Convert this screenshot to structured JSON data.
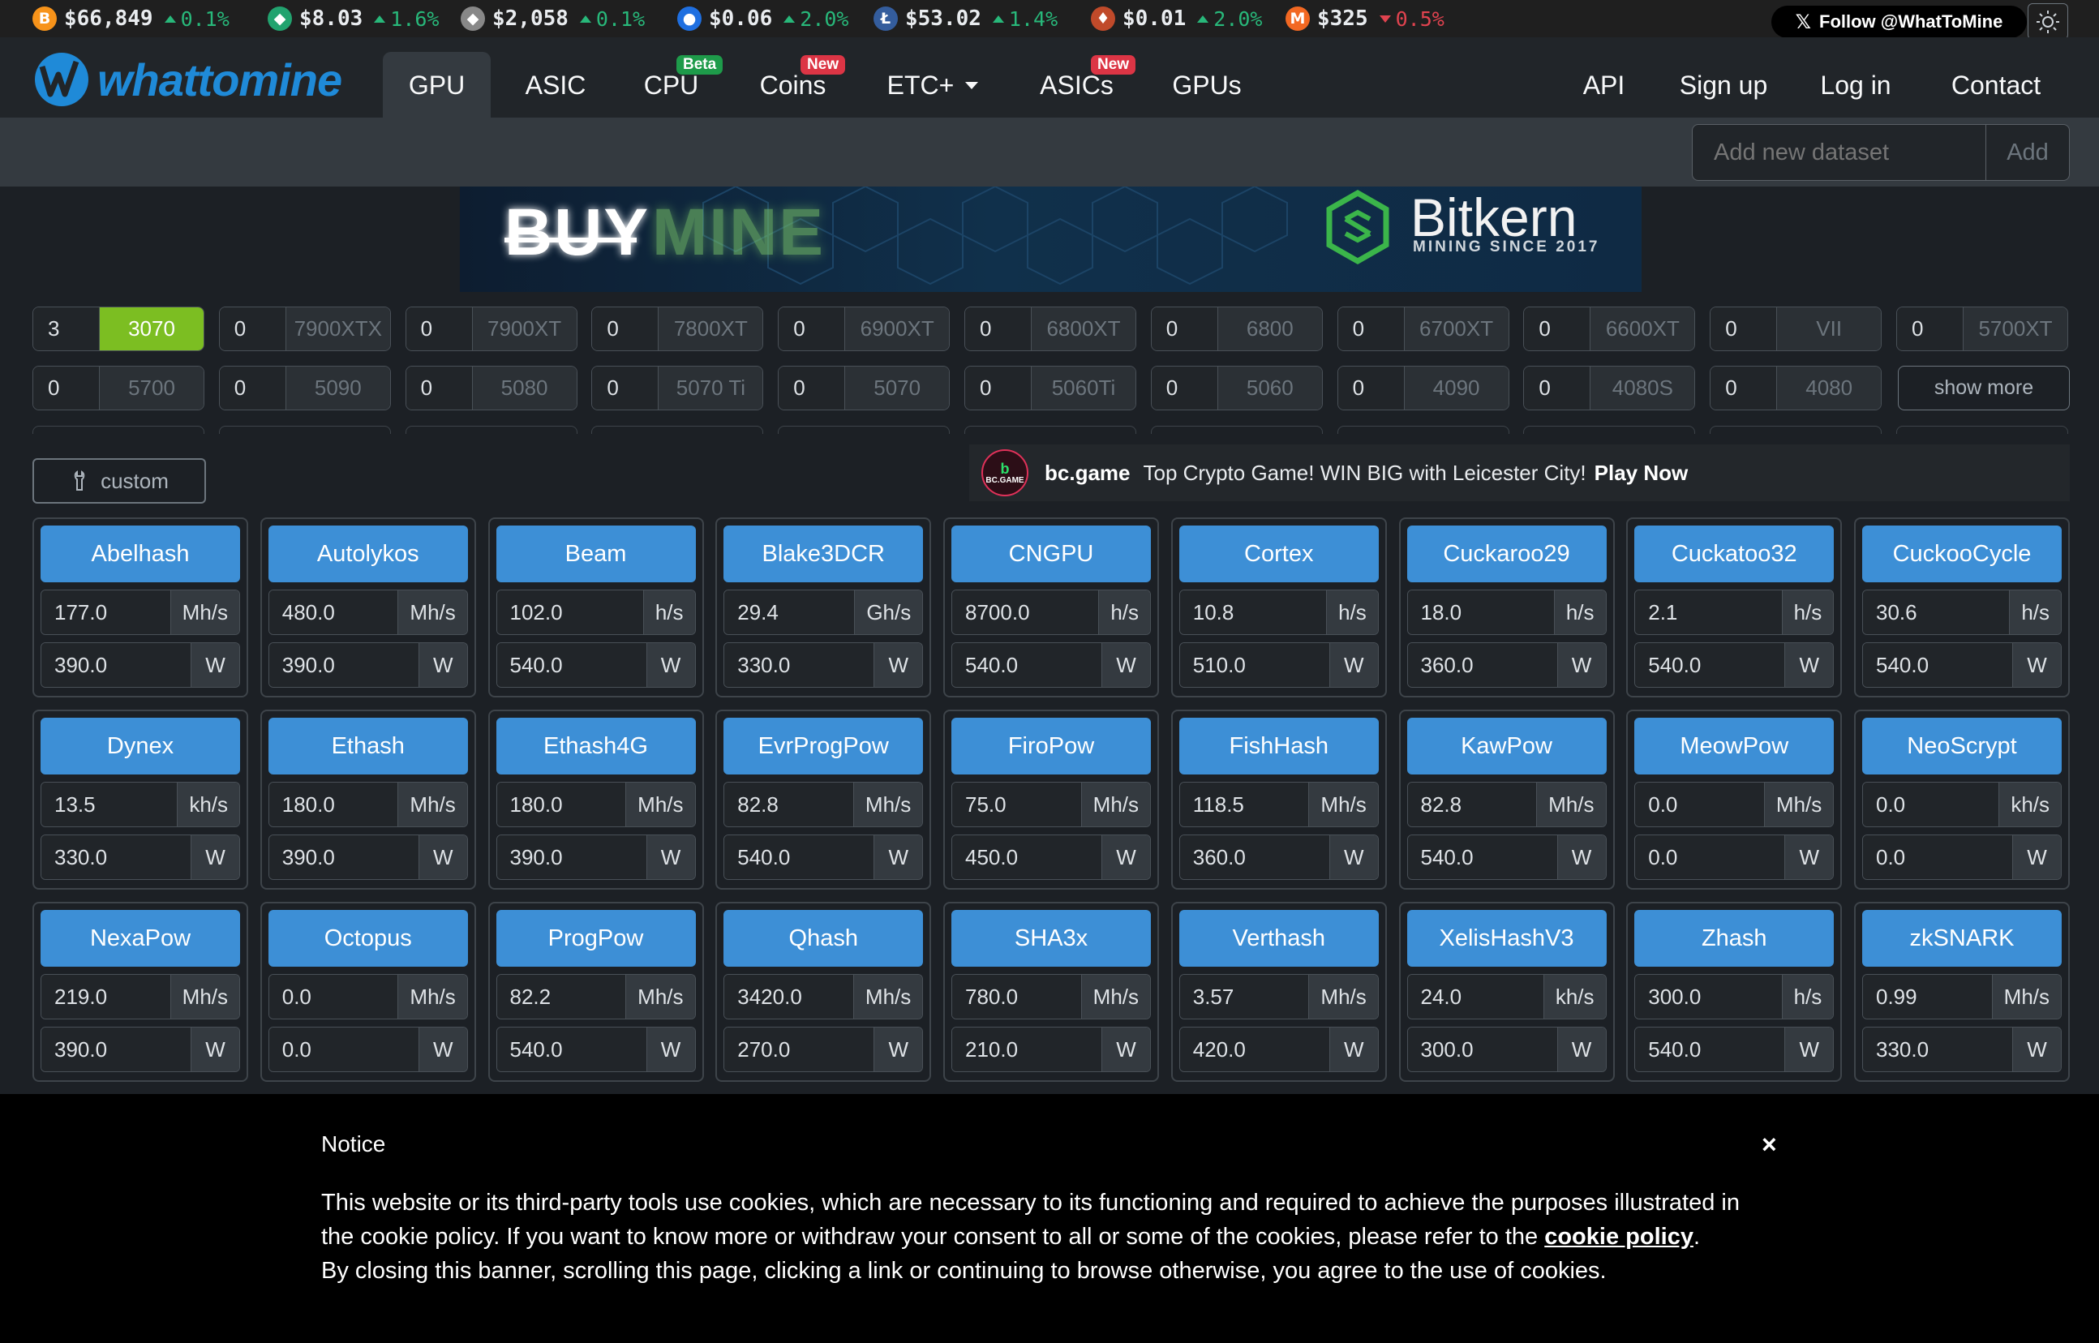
{
  "ticker": [
    {
      "symbol": "B",
      "color": "#f7931a",
      "price": "$66,849",
      "change": "0.1%",
      "direction": "up",
      "icon": "bitcoin-icon"
    },
    {
      "symbol": "◆",
      "color": "#22a36f",
      "price": "$8.03",
      "change": "1.6%",
      "direction": "up",
      "icon": "etc-icon"
    },
    {
      "symbol": "◆",
      "color": "#888888",
      "price": "$2,058",
      "change": "0.1%",
      "direction": "up",
      "icon": "ethereum-icon"
    },
    {
      "symbol": "●",
      "color": "#1f6fe0",
      "price": "$0.06",
      "change": "2.0%",
      "direction": "up",
      "icon": "coin-icon"
    },
    {
      "symbol": "Ł",
      "color": "#345d9d",
      "price": "$53.02",
      "change": "1.4%",
      "direction": "up",
      "icon": "litecoin-icon"
    },
    {
      "symbol": "♦",
      "color": "#c04a2a",
      "price": "$0.01",
      "change": "2.0%",
      "direction": "up",
      "icon": "rvn-icon"
    },
    {
      "symbol": "M",
      "color": "#f26822",
      "price": "$325",
      "change": "0.5%",
      "direction": "down",
      "icon": "monero-icon"
    }
  ],
  "follow": {
    "label": "Follow @WhatToMine"
  },
  "brand": {
    "name": "whattomine"
  },
  "nav": {
    "gpu": "GPU",
    "asic": "ASIC",
    "cpu": "CPU",
    "cpu_badge": "Beta",
    "coins": "Coins",
    "coins_badge": "New",
    "etc": "ETC+",
    "asics": "ASICs",
    "asics_badge": "New",
    "gpus": "GPUs",
    "api": "API",
    "signup": "Sign up",
    "login": "Log in",
    "contact": "Contact"
  },
  "dataset": {
    "placeholder": "Add new dataset",
    "add_label": "Add"
  },
  "banner": {
    "buy": "BUY",
    "mine": "MINE",
    "brand": "Bitkern",
    "tagline": "MINING SINCE 2017"
  },
  "gpus": [
    [
      {
        "qty": "3",
        "name": "3070",
        "selected": true
      },
      {
        "qty": "0",
        "name": "7900XTX"
      },
      {
        "qty": "0",
        "name": "7900XT"
      },
      {
        "qty": "0",
        "name": "7800XT"
      },
      {
        "qty": "0",
        "name": "6900XT"
      },
      {
        "qty": "0",
        "name": "6800XT"
      },
      {
        "qty": "0",
        "name": "6800"
      },
      {
        "qty": "0",
        "name": "6700XT"
      },
      {
        "qty": "0",
        "name": "6600XT"
      },
      {
        "qty": "0",
        "name": "VII"
      },
      {
        "qty": "0",
        "name": "5700XT"
      }
    ],
    [
      {
        "qty": "0",
        "name": "5700"
      },
      {
        "qty": "0",
        "name": "5090"
      },
      {
        "qty": "0",
        "name": "5080"
      },
      {
        "qty": "0",
        "name": "5070 Ti"
      },
      {
        "qty": "0",
        "name": "5070"
      },
      {
        "qty": "0",
        "name": "5060Ti"
      },
      {
        "qty": "0",
        "name": "5060"
      },
      {
        "qty": "0",
        "name": "4090"
      },
      {
        "qty": "0",
        "name": "4080S"
      },
      {
        "qty": "0",
        "name": "4080"
      }
    ]
  ],
  "show_more": "show more",
  "custom": "custom",
  "ad": {
    "logo_text": "BC.GAME",
    "brand": "bc.game",
    "text": "Top Crypto Game! WIN BIG with Leicester City!",
    "cta": "Play Now"
  },
  "algorithms": [
    [
      {
        "name": "Abelhash",
        "hashrate": "177.0",
        "unit": "Mh/s",
        "power": "390.0"
      },
      {
        "name": "Autolykos",
        "hashrate": "480.0",
        "unit": "Mh/s",
        "power": "390.0"
      },
      {
        "name": "Beam",
        "hashrate": "102.0",
        "unit": "h/s",
        "power": "540.0"
      },
      {
        "name": "Blake3DCR",
        "hashrate": "29.4",
        "unit": "Gh/s",
        "power": "330.0"
      },
      {
        "name": "CNGPU",
        "hashrate": "8700.0",
        "unit": "h/s",
        "power": "540.0"
      },
      {
        "name": "Cortex",
        "hashrate": "10.8",
        "unit": "h/s",
        "power": "510.0"
      },
      {
        "name": "Cuckaroo29",
        "hashrate": "18.0",
        "unit": "h/s",
        "power": "360.0"
      },
      {
        "name": "Cuckatoo32",
        "hashrate": "2.1",
        "unit": "h/s",
        "power": "540.0"
      },
      {
        "name": "CuckooCycle",
        "hashrate": "30.6",
        "unit": "h/s",
        "power": "540.0"
      }
    ],
    [
      {
        "name": "Dynex",
        "hashrate": "13.5",
        "unit": "kh/s",
        "power": "330.0"
      },
      {
        "name": "Ethash",
        "hashrate": "180.0",
        "unit": "Mh/s",
        "power": "390.0"
      },
      {
        "name": "Ethash4G",
        "hashrate": "180.0",
        "unit": "Mh/s",
        "power": "390.0"
      },
      {
        "name": "EvrProgPow",
        "hashrate": "82.8",
        "unit": "Mh/s",
        "power": "540.0"
      },
      {
        "name": "FiroPow",
        "hashrate": "75.0",
        "unit": "Mh/s",
        "power": "450.0"
      },
      {
        "name": "FishHash",
        "hashrate": "118.5",
        "unit": "Mh/s",
        "power": "360.0"
      },
      {
        "name": "KawPow",
        "hashrate": "82.8",
        "unit": "Mh/s",
        "power": "540.0"
      },
      {
        "name": "MeowPow",
        "hashrate": "0.0",
        "unit": "Mh/s",
        "power": "0.0"
      },
      {
        "name": "NeoScrypt",
        "hashrate": "0.0",
        "unit": "kh/s",
        "power": "0.0"
      }
    ],
    [
      {
        "name": "NexaPow",
        "hashrate": "219.0",
        "unit": "Mh/s",
        "power": "390.0"
      },
      {
        "name": "Octopus",
        "hashrate": "0.0",
        "unit": "Mh/s",
        "power": "0.0"
      },
      {
        "name": "ProgPow",
        "hashrate": "82.2",
        "unit": "Mh/s",
        "power": "540.0"
      },
      {
        "name": "Qhash",
        "hashrate": "3420.0",
        "unit": "Mh/s",
        "power": "270.0"
      },
      {
        "name": "SHA3x",
        "hashrate": "780.0",
        "unit": "Mh/s",
        "power": "210.0"
      },
      {
        "name": "Verthash",
        "hashrate": "3.57",
        "unit": "Mh/s",
        "power": "420.0"
      },
      {
        "name": "XelisHashV3",
        "hashrate": "24.0",
        "unit": "kh/s",
        "power": "300.0"
      },
      {
        "name": "Zhash",
        "hashrate": "300.0",
        "unit": "h/s",
        "power": "540.0"
      },
      {
        "name": "zkSNARK",
        "hashrate": "0.99",
        "unit": "Mh/s",
        "power": "330.0"
      }
    ]
  ],
  "power_unit": "W",
  "notice": {
    "title": "Notice",
    "close": "×",
    "body_1": "This website or its third-party tools use cookies, which are necessary to its functioning and required to achieve the purposes illustrated in the cookie policy. If you want to know more or withdraw your consent to all or some of the cookies, please refer to the ",
    "link": "cookie policy",
    "body_2": ".",
    "body_3": "By closing this banner, scrolling this page, clicking a link or continuing to browse otherwise, you agree to the use of cookies."
  }
}
